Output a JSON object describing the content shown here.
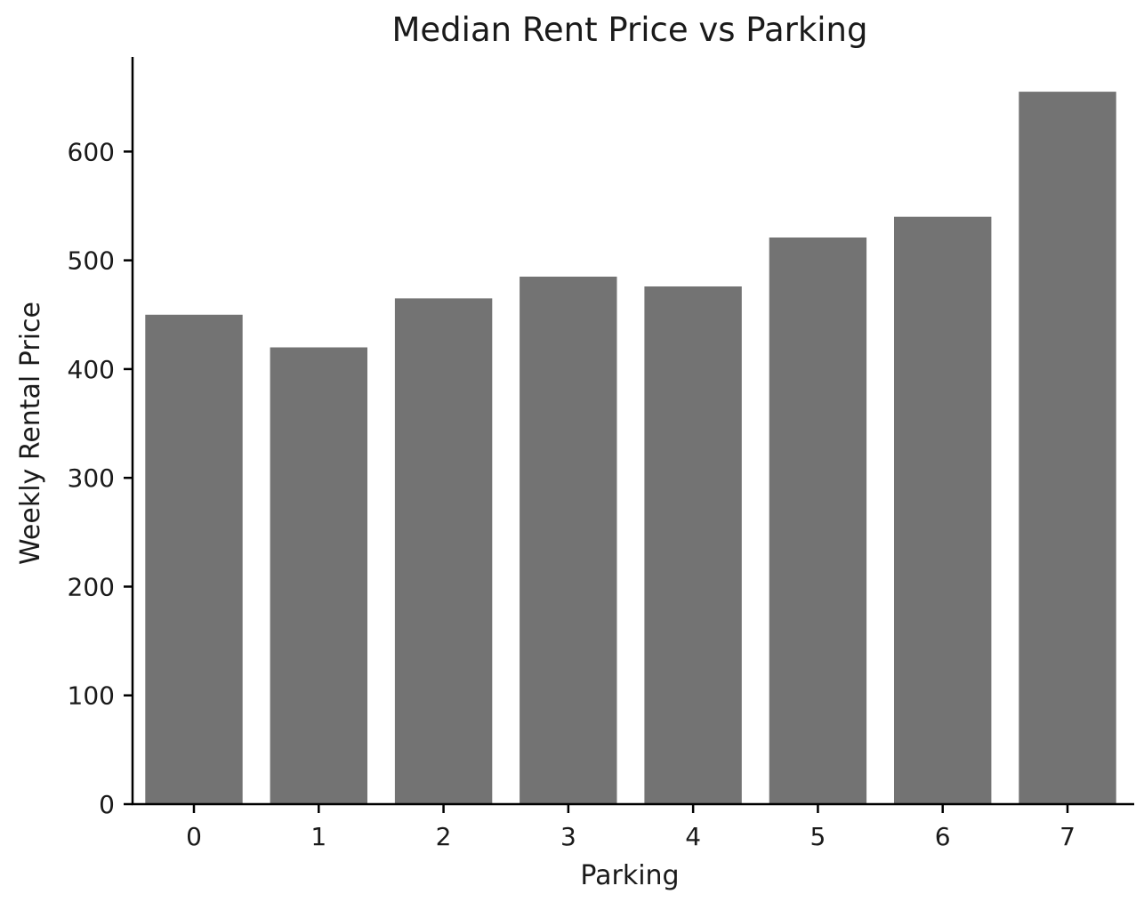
{
  "chart_data": {
    "type": "bar",
    "title": "Median Rent Price vs Parking",
    "xlabel": "Parking",
    "ylabel": "Weekly Rental Price",
    "categories": [
      "0",
      "1",
      "2",
      "3",
      "4",
      "5",
      "6",
      "7"
    ],
    "values": [
      450,
      420,
      465,
      485,
      476,
      521,
      540,
      655
    ],
    "ylim": [
      0,
      687
    ],
    "yticks": [
      0,
      100,
      200,
      300,
      400,
      500,
      600
    ],
    "grid": false,
    "legend": "none",
    "bar_color": "#737373",
    "spines": [
      "left",
      "bottom"
    ]
  }
}
